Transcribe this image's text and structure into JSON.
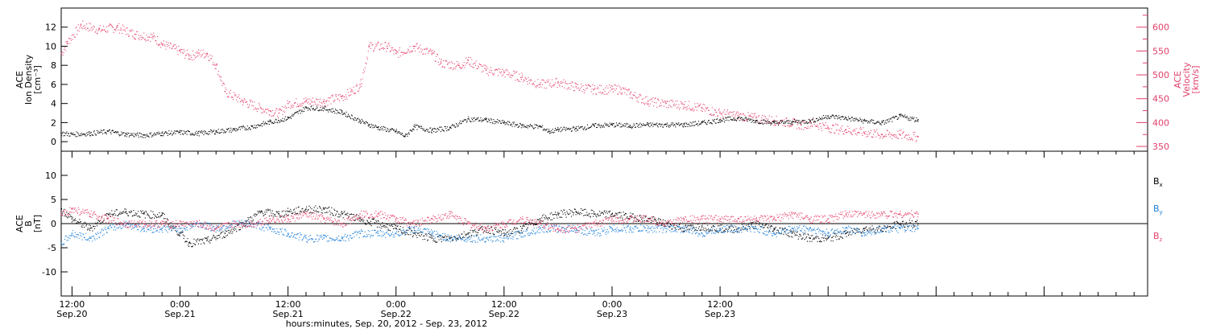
{
  "colors": {
    "black": "#000000",
    "red": "#e5436d",
    "blue": "#1e7fd8"
  },
  "chart_data": [
    {
      "type": "scatter",
      "panel": "density-velocity",
      "ylabel_left": [
        "ACE",
        "Ion Density",
        "[cm⁻³]"
      ],
      "ylabel_right": [
        "ACE",
        "Velocity",
        "[km/s]"
      ],
      "ylim_left": [
        -1,
        14
      ],
      "ylim_right": [
        340,
        640
      ],
      "yticks_left": [
        0,
        2,
        4,
        6,
        8,
        10,
        12
      ],
      "yticks_right": [
        350,
        400,
        450,
        500,
        550,
        600
      ],
      "series": [
        {
          "axis": "left",
          "color": "black",
          "points": [
            [
              10.8,
              0.9
            ],
            [
              12,
              0.8
            ],
            [
              14,
              0.9
            ],
            [
              16,
              1.1
            ],
            [
              18,
              0.8
            ],
            [
              20,
              0.7
            ],
            [
              22,
              0.9
            ],
            [
              24,
              1.0
            ],
            [
              26,
              0.9
            ],
            [
              28,
              1.1
            ],
            [
              30,
              1.3
            ],
            [
              32,
              1.6
            ],
            [
              34,
              2.1
            ],
            [
              36,
              2.5
            ],
            [
              38,
              3.6
            ],
            [
              40,
              3.5
            ],
            [
              42,
              3.1
            ],
            [
              44,
              2.2
            ],
            [
              45,
              1.8
            ],
            [
              46,
              1.5
            ],
            [
              48,
              1.1
            ],
            [
              49,
              0.6
            ],
            [
              50,
              1.6
            ],
            [
              52,
              1.2
            ],
            [
              54,
              1.5
            ],
            [
              56,
              2.4
            ],
            [
              58,
              2.3
            ],
            [
              60,
              2.0
            ],
            [
              62,
              1.7
            ],
            [
              64,
              1.6
            ],
            [
              65,
              1.1
            ],
            [
              66,
              1.3
            ],
            [
              68,
              1.4
            ],
            [
              70,
              1.7
            ],
            [
              72,
              1.8
            ],
            [
              74,
              1.7
            ],
            [
              76,
              1.8
            ],
            [
              78,
              1.8
            ],
            [
              80,
              1.8
            ],
            [
              82,
              2.0
            ],
            [
              84,
              2.3
            ],
            [
              86,
              2.5
            ],
            [
              88,
              2.2
            ],
            [
              90,
              2.0
            ],
            [
              92,
              2.1
            ],
            [
              94,
              2.2
            ],
            [
              96,
              2.7
            ],
            [
              98,
              2.5
            ],
            [
              100,
              2.2
            ],
            [
              102,
              2.0
            ],
            [
              104,
              2.7
            ],
            [
              106,
              2.3
            ]
          ]
        },
        {
          "axis": "right",
          "color": "red",
          "points": [
            [
              10.8,
              545
            ],
            [
              11.5,
              570
            ],
            [
              13,
              605
            ],
            [
              15,
              595
            ],
            [
              17,
              600
            ],
            [
              19,
              585
            ],
            [
              21,
              580
            ],
            [
              22,
              565
            ],
            [
              24,
              550
            ],
            [
              25,
              540
            ],
            [
              26,
              545
            ],
            [
              27,
              545
            ],
            [
              28,
              520
            ],
            [
              29,
              465
            ],
            [
              31,
              445
            ],
            [
              33,
              430
            ],
            [
              34,
              425
            ],
            [
              35,
              420
            ],
            [
              36,
              440
            ],
            [
              38,
              445
            ],
            [
              40,
              445
            ],
            [
              42,
              455
            ],
            [
              43,
              465
            ],
            [
              44,
              480
            ],
            [
              45,
              560
            ],
            [
              47,
              560
            ],
            [
              48,
              545
            ],
            [
              50,
              560
            ],
            [
              52,
              545
            ],
            [
              53,
              525
            ],
            [
              55,
              520
            ],
            [
              56,
              530
            ],
            [
              58,
              510
            ],
            [
              60,
              505
            ],
            [
              62,
              495
            ],
            [
              64,
              480
            ],
            [
              66,
              485
            ],
            [
              68,
              475
            ],
            [
              70,
              470
            ],
            [
              72,
              470
            ],
            [
              73,
              470
            ],
            [
              74,
              460
            ],
            [
              76,
              445
            ],
            [
              78,
              440
            ],
            [
              80,
              438
            ],
            [
              82,
              430
            ],
            [
              84,
              420
            ],
            [
              86,
              415
            ],
            [
              88,
              410
            ],
            [
              90,
              405
            ],
            [
              92,
              400
            ],
            [
              93,
              395
            ],
            [
              94,
              400
            ],
            [
              96,
              390
            ],
            [
              98,
              385
            ],
            [
              100,
              380
            ],
            [
              102,
              375
            ],
            [
              104,
              375
            ],
            [
              106,
              370
            ]
          ]
        }
      ]
    },
    {
      "type": "scatter",
      "panel": "magnetic-field",
      "ylabel": [
        "ACE",
        "B",
        "[nT]"
      ],
      "ylim": [
        -15,
        15
      ],
      "yticks": [
        -10,
        -5,
        0,
        5,
        10
      ],
      "legend": [
        {
          "label": "B",
          "sub": "x",
          "color": "black"
        },
        {
          "label": "B",
          "sub": "y",
          "color": "blue"
        },
        {
          "label": "B",
          "sub": "z",
          "color": "red"
        }
      ],
      "series": [
        {
          "name": "Bx",
          "color": "black",
          "points": [
            [
              10.8,
              3
            ],
            [
              12,
              1
            ],
            [
              14,
              -1
            ],
            [
              16,
              2
            ],
            [
              18,
              2.5
            ],
            [
              20,
              2
            ],
            [
              22,
              1.8
            ],
            [
              23,
              -0.5
            ],
            [
              24,
              -2
            ],
            [
              25,
              -4
            ],
            [
              27,
              -3.5
            ],
            [
              29,
              -2
            ],
            [
              31,
              0
            ],
            [
              33,
              2.5
            ],
            [
              35,
              2
            ],
            [
              36,
              2.5
            ],
            [
              38,
              3
            ],
            [
              40,
              3
            ],
            [
              42,
              2
            ],
            [
              44,
              1
            ],
            [
              46,
              0
            ],
            [
              48,
              -1
            ],
            [
              50,
              -2
            ],
            [
              52,
              -3
            ],
            [
              54,
              -3
            ],
            [
              56,
              -2
            ],
            [
              58,
              -1
            ],
            [
              60,
              -2
            ],
            [
              62,
              -1
            ],
            [
              64,
              1
            ],
            [
              66,
              2
            ],
            [
              68,
              2.5
            ],
            [
              70,
              2
            ],
            [
              72,
              2
            ],
            [
              74,
              1.5
            ],
            [
              76,
              1
            ],
            [
              78,
              0
            ],
            [
              80,
              -1
            ],
            [
              82,
              -0.5
            ],
            [
              84,
              -1
            ],
            [
              86,
              -1
            ],
            [
              88,
              0
            ],
            [
              90,
              -1
            ],
            [
              92,
              -2
            ],
            [
              94,
              -3
            ],
            [
              96,
              -3
            ],
            [
              98,
              -2
            ],
            [
              100,
              -1
            ],
            [
              102,
              -1
            ],
            [
              104,
              0
            ],
            [
              106,
              0
            ]
          ]
        },
        {
          "name": "By",
          "color": "blue",
          "points": [
            [
              10.8,
              -4
            ],
            [
              12,
              -2
            ],
            [
              14,
              -3
            ],
            [
              16,
              -1
            ],
            [
              18,
              0
            ],
            [
              20,
              -1
            ],
            [
              22,
              -1
            ],
            [
              24,
              -1
            ],
            [
              26,
              0
            ],
            [
              28,
              -1
            ],
            [
              30,
              0
            ],
            [
              32,
              0
            ],
            [
              34,
              -1
            ],
            [
              36,
              -2
            ],
            [
              38,
              -3
            ],
            [
              40,
              -3
            ],
            [
              42,
              -3
            ],
            [
              44,
              -2
            ],
            [
              46,
              -2
            ],
            [
              48,
              -2
            ],
            [
              50,
              -1
            ],
            [
              52,
              -2
            ],
            [
              54,
              -3
            ],
            [
              56,
              -3
            ],
            [
              58,
              -3
            ],
            [
              60,
              -3
            ],
            [
              62,
              -2
            ],
            [
              64,
              -1
            ],
            [
              66,
              -1
            ],
            [
              68,
              -1
            ],
            [
              70,
              -2
            ],
            [
              72,
              -1
            ],
            [
              74,
              -1
            ],
            [
              76,
              -1
            ],
            [
              78,
              -1
            ],
            [
              80,
              -1
            ],
            [
              82,
              -2
            ],
            [
              84,
              -1
            ],
            [
              86,
              -1
            ],
            [
              88,
              -1
            ],
            [
              90,
              -2
            ],
            [
              92,
              -1
            ],
            [
              94,
              -1
            ],
            [
              96,
              -2
            ],
            [
              98,
              -1
            ],
            [
              100,
              -2
            ],
            [
              102,
              -1
            ],
            [
              104,
              -1
            ],
            [
              106,
              -1
            ]
          ]
        },
        {
          "name": "Bz",
          "color": "red",
          "points": [
            [
              10.8,
              2
            ],
            [
              12,
              3
            ],
            [
              14,
              2
            ],
            [
              16,
              1
            ],
            [
              18,
              0
            ],
            [
              20,
              0
            ],
            [
              22,
              0
            ],
            [
              24,
              0
            ],
            [
              26,
              0
            ],
            [
              28,
              -1
            ],
            [
              30,
              0
            ],
            [
              32,
              0
            ],
            [
              34,
              1
            ],
            [
              36,
              1
            ],
            [
              38,
              2
            ],
            [
              40,
              1
            ],
            [
              42,
              0
            ],
            [
              44,
              2
            ],
            [
              46,
              2
            ],
            [
              48,
              1
            ],
            [
              50,
              0
            ],
            [
              52,
              1
            ],
            [
              54,
              2
            ],
            [
              56,
              0
            ],
            [
              58,
              -1
            ],
            [
              60,
              0
            ],
            [
              62,
              1
            ],
            [
              64,
              0
            ],
            [
              66,
              -1
            ],
            [
              68,
              -1
            ],
            [
              70,
              0
            ],
            [
              72,
              1
            ],
            [
              74,
              1
            ],
            [
              76,
              1
            ],
            [
              78,
              0
            ],
            [
              80,
              1
            ],
            [
              82,
              1
            ],
            [
              84,
              1
            ],
            [
              86,
              1
            ],
            [
              88,
              1
            ],
            [
              90,
              1
            ],
            [
              92,
              2
            ],
            [
              94,
              1
            ],
            [
              96,
              1
            ],
            [
              98,
              2
            ],
            [
              100,
              2
            ],
            [
              102,
              2
            ],
            [
              104,
              2
            ],
            [
              106,
              2
            ]
          ]
        }
      ]
    }
  ],
  "x_axis": {
    "xlim": [
      10.8,
      131.5
    ],
    "major_ticks": [
      {
        "x": 12,
        "time": "12:00",
        "date": "Sep.20"
      },
      {
        "x": 24,
        "time": "0:00",
        "date": "Sep.21"
      },
      {
        "x": 36,
        "time": "12:00",
        "date": "Sep.21"
      },
      {
        "x": 48,
        "time": "0:00",
        "date": "Sep.22"
      },
      {
        "x": 60,
        "time": "12:00",
        "date": "Sep.22"
      },
      {
        "x": 72,
        "time": "0:00",
        "date": "Sep.23"
      },
      {
        "x": 84,
        "time": "12:00",
        "date": "Sep.23"
      }
    ],
    "xlabel": "hours:minutes, Sep. 20, 2012 - Sep. 23, 2012"
  }
}
